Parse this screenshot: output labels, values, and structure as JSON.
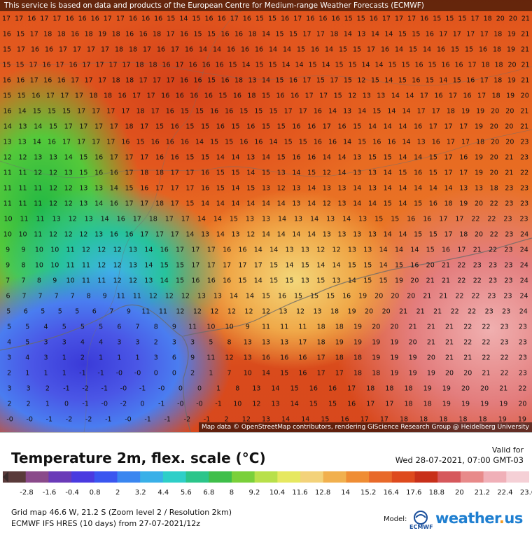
{
  "map": {
    "credit": "This service is based on data and products of the European Centre for Medium-range Weather Forecasts (ECMWF)",
    "attribution": "Map data © OpenStreetMap contributors, rendering GIScience Research Group @ Heidelberg University",
    "grid_rows": [
      "17 17 16 17 17 16 16 16 17 17 16 16 16 15 14 15 16 16 17 16 15 15 16 17 16 16 16 15 15 16 17 17 17 16 15 15 15 17 18 20 20 21",
      "16 15 17 18 18 16 18 19 18 16 16 18 17 16 15 15 16 16 18 14 15 15 17 17 18 14 13 14 14 15 15 16 17 17 17 17 18 19 21",
      "15 17 16 16 17 17 17 17 18 18 17 16 17 16 14 14 16 16 16 14 14 15 16 14 15 15 17 16 14 15 14 16 15 15 16 18 19 21",
      "15 15 17 16 17 16 17 17 17 17 18 18 16 17 16 16 16 15 14 15 15 14 14 15 14 15 15 14 14 15 15 16 15 16 16 17 18 18 20 21",
      "16 16 17 16 16 17 17 17 18 18 17 17 17 16 16 15 16 18 13 14 15 16 17 15 17 15 12 15 14 15 16 15 14 15 16 17 18 19 21",
      "15 15 16 17 17 17 18 18 16 17 17 16 16 16 16 15 16 18 15 16 16 17 17 15 12 13 13 14 14 17 16 17 16 17 18 19 20",
      "16 14 15 15 15 17 17 17 17 18 17 16 15 15 16 16 15 15 15 17 17 16 14 13 14 15 14 14 17 17 18 19 19 20 20 21",
      "14 13 14 15 17 17 17 17 18 17 15 16 15 15 16 15 16 15 15 16 16 17 16 15 14 14 14 16 17 17 17 19 20 20 21",
      "13 13 14 16 17 17 17 17 16 15 16 16 16 14 15 15 16 16 14 15 15 16 16 14 15 16 16 14 13 16 17 17 18 20 20 23",
      "12 12 13 13 14 15 16 17 17 17 16 16 15 15 14 14 13 14 15 16 16 14 14 13 15 15 14 14 15 17 16 19 20 21 23",
      "11 11 12 12 13 15 16 16 17 18 18 17 17 16 15 15 14 15 13 14 15 12 14 13 13 14 15 16 15 17 17 19 20 21 22",
      "11 11 11 12 12 13 13 14 15 16 17 17 17 16 15 14 15 13 12 13 14 13 13 14 13 14 14 14 14 14 13 13 18 23 23",
      "11 11 11 12 12 13 14 16 17 17 18 17 15 14 14 14 14 14 14 13 14 12 13 14 14 15 14 15 16 18 19 20 22 23 23",
      "10 11 11 13 12 13 14 16 17 18 17 17 14 14 15 13 13 14 13 14 13 14 13 15 15 16 16 17 17 22 22 23 23",
      "10 10 11 12 12 12 13 16 16 17 17 17 14 13 14 13 12 14 14 14 14 13 13 13 13 14 14 15 15 17 18 20 22 23 24",
      "9 9 10 10 11 12 12 12 13 14 16 17 17 17 16 16 14 14 13 13 12 12 13 13 14 14 14 15 16 17 21 22 23 24",
      "9 8 10 10 11 11 12 12 13 14 15 15 17 17 17 17 17 15 14 15 14 14 15 15 14 15 16 20 21 22 23 23 23 24",
      "7 7 8 9 10 11 11 12 12 13 14 15 16 16 16 15 14 15 15 13 15 13 14 15 15 19 20 21 21 22 22 23 23 24",
      "6 7 7 7 7 8 9 11 11 12 12 12 13 13 14 14 15 16 15 15 15 16 19 20 20 20 21 21 22 22 23 23 24",
      "5 6 5 5 5 6 7 9 11 11 12 12 12 12 12 12 13 12 13 18 19 20 20 21 21 21 22 22 23 23 24",
      "5 5 4 5 5 5 6 7 8 9 11 10 10 9 11 11 11 18 18 19 20 20 21 21 21 22 22 23 23",
      "4 5 3 3 4 4 3 3 2 3 3 5 8 13 13 13 17 18 19 19 19 19 20 21 21 22 22 23 23",
      "3 4 3 1 2 1 1 1 3 6 9 11 12 13 16 16 16 17 18 18 19 19 19 20 21 21 22 22 23",
      "2 1 1 1 -1 -1 -0 -0 0 0 2 1 7 10 14 15 16 17 17 18 18 19 19 19 20 20 21 22 23",
      "3 3 2 -1 -2 -1 -0 -1 -0 0 0 1 8 13 14 15 16 16 17 18 18 18 19 19 20 20 21 22",
      "2 2 1 0 -1 -0 -2 0 -1 -0 -0 -1 10 12 13 14 15 15 16 17 17 18 18 19 19 19 19 20",
      "-0 -0 -1 -2 -2 -1 -0 -1 -1 -2 -1 2 12 13 14 14 15 16 17 17 18 18 18 18 18 19 19"
    ]
  },
  "legend": {
    "title": "Temperature 2m, flex. scale (°C)",
    "valid_label": "Valid for",
    "valid_date": "Wed 28-07-2021, 07:00 GMT-03",
    "ticks": [
      "-2.8",
      "-1.6",
      "-0.4",
      "0.8",
      "2",
      "3.2",
      "4.4",
      "5.6",
      "6.8",
      "8",
      "9.2",
      "10.4",
      "11.6",
      "12.8",
      "14",
      "15.2",
      "16.4",
      "17.6",
      "18.8",
      "20",
      "21.2",
      "22.4",
      "23.6"
    ],
    "scale_colors": [
      "#5a3a3a",
      "#8a4a8a",
      "#6a3ab8",
      "#4a3ae0",
      "#3a56f0",
      "#3a86f0",
      "#39b0e8",
      "#2ecfc8",
      "#2bc58a",
      "#3fbf4a",
      "#7ad03a",
      "#b8e04a",
      "#e6e860",
      "#f3d27a",
      "#f1b04e",
      "#ef8d34",
      "#e8692a",
      "#de4a1e",
      "#c8301a",
      "#d6585c",
      "#e88a8a",
      "#f0b0b8",
      "#f5d0d6"
    ],
    "grid_info": "Grid map 46.6 W, 21.2 S (Zoom level 2 / Resolution 2km)",
    "model_info": "ECMWF IFS HRES (10 days) from 27-07-2021/12z",
    "model_label": "Model:",
    "ecmwf_label": "ECMWF",
    "brand_name": "weather",
    "brand_dot": ".",
    "brand_tld": "us"
  }
}
